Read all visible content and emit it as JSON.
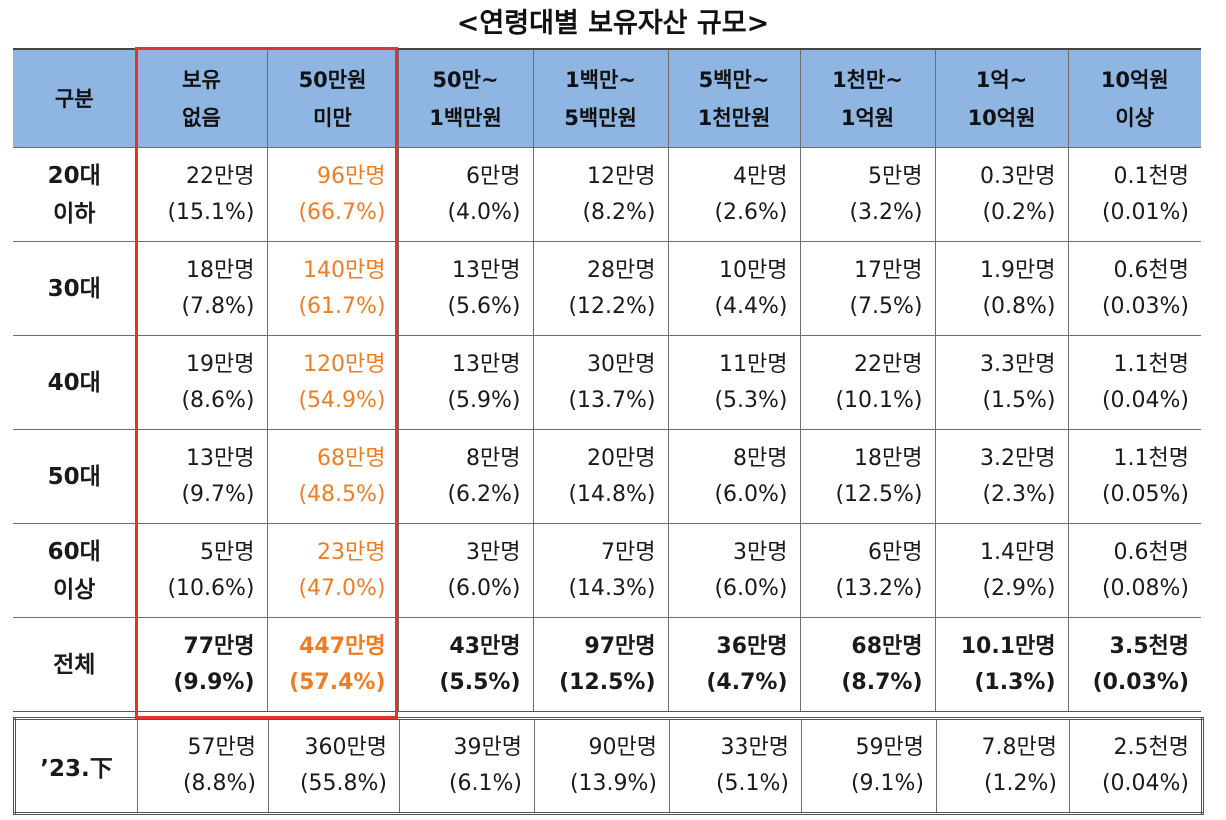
{
  "title": "<연령대별 보유자산 규모>",
  "header": {
    "category": [
      "구분"
    ],
    "columns": [
      [
        "보유",
        "없음"
      ],
      [
        "50만원",
        "미만"
      ],
      [
        "50만~",
        "1백만원"
      ],
      [
        "1백만~",
        "5백만원"
      ],
      [
        "5백만~",
        "1천만원"
      ],
      [
        "1천만~",
        "1억원"
      ],
      [
        "1억~",
        "10억원"
      ],
      [
        "10억원",
        "이상"
      ]
    ]
  },
  "rows": [
    {
      "label": [
        "20대",
        "이하"
      ],
      "cells": [
        [
          "22만명",
          "(15.1%)"
        ],
        [
          "96만명",
          "(66.7%)"
        ],
        [
          "6만명",
          "(4.0%)"
        ],
        [
          "12만명",
          "(8.2%)"
        ],
        [
          "4만명",
          "(2.6%)"
        ],
        [
          "5만명",
          "(3.2%)"
        ],
        [
          "0.3만명",
          "(0.2%)"
        ],
        [
          "0.1천명",
          "(0.01%)"
        ]
      ]
    },
    {
      "label": [
        "30대"
      ],
      "cells": [
        [
          "18만명",
          "(7.8%)"
        ],
        [
          "140만명",
          "(61.7%)"
        ],
        [
          "13만명",
          "(5.6%)"
        ],
        [
          "28만명",
          "(12.2%)"
        ],
        [
          "10만명",
          "(4.4%)"
        ],
        [
          "17만명",
          "(7.5%)"
        ],
        [
          "1.9만명",
          "(0.8%)"
        ],
        [
          "0.6천명",
          "(0.03%)"
        ]
      ]
    },
    {
      "label": [
        "40대"
      ],
      "cells": [
        [
          "19만명",
          "(8.6%)"
        ],
        [
          "120만명",
          "(54.9%)"
        ],
        [
          "13만명",
          "(5.9%)"
        ],
        [
          "30만명",
          "(13.7%)"
        ],
        [
          "11만명",
          "(5.3%)"
        ],
        [
          "22만명",
          "(10.1%)"
        ],
        [
          "3.3만명",
          "(1.5%)"
        ],
        [
          "1.1천명",
          "(0.04%)"
        ]
      ]
    },
    {
      "label": [
        "50대"
      ],
      "cells": [
        [
          "13만명",
          "(9.7%)"
        ],
        [
          "68만명",
          "(48.5%)"
        ],
        [
          "8만명",
          "(6.2%)"
        ],
        [
          "20만명",
          "(14.8%)"
        ],
        [
          "8만명",
          "(6.0%)"
        ],
        [
          "18만명",
          "(12.5%)"
        ],
        [
          "3.2만명",
          "(2.3%)"
        ],
        [
          "1.1천명",
          "(0.05%)"
        ]
      ]
    },
    {
      "label": [
        "60대",
        "이상"
      ],
      "cells": [
        [
          "5만명",
          "(10.6%)"
        ],
        [
          "23만명",
          "(47.0%)"
        ],
        [
          "3만명",
          "(6.0%)"
        ],
        [
          "7만명",
          "(14.3%)"
        ],
        [
          "3만명",
          "(6.0%)"
        ],
        [
          "6만명",
          "(13.2%)"
        ],
        [
          "1.4만명",
          "(2.9%)"
        ],
        [
          "0.6천명",
          "(0.08%)"
        ]
      ]
    },
    {
      "label": [
        "전체"
      ],
      "cells": [
        [
          "77만명",
          "(9.9%)"
        ],
        [
          "447만명",
          "(57.4%)"
        ],
        [
          "43만명",
          "(5.5%)"
        ],
        [
          "97만명",
          "(12.5%)"
        ],
        [
          "36만명",
          "(4.7%)"
        ],
        [
          "68만명",
          "(8.7%)"
        ],
        [
          "10.1만명",
          "(1.3%)"
        ],
        [
          "3.5천명",
          "(0.03%)"
        ]
      ]
    }
  ],
  "previous": {
    "label": "’23.下",
    "cells": [
      [
        "57만명",
        "(8.8%)"
      ],
      [
        "360만명",
        "(55.8%)"
      ],
      [
        "39만명",
        "(6.1%)"
      ],
      [
        "90만명",
        "(13.9%)"
      ],
      [
        "33만명",
        "(5.1%)"
      ],
      [
        "59만명",
        "(9.1%)"
      ],
      [
        "7.8만명",
        "(1.2%)"
      ],
      [
        "2.5천명",
        "(0.04%)"
      ]
    ]
  },
  "colors": {
    "header_bg": "#8fb5e2",
    "highlight_text": "#f07d22",
    "highlight_border": "#e0342d"
  }
}
